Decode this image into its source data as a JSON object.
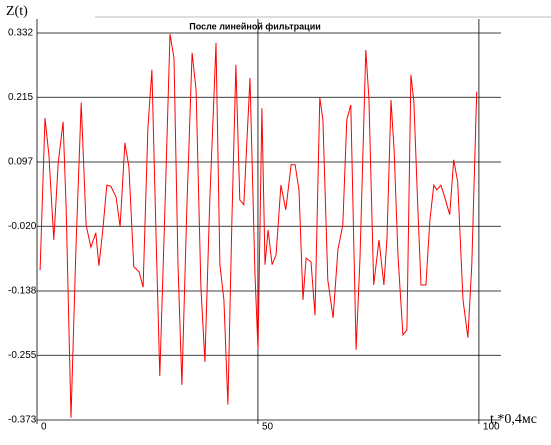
{
  "chart_data": {
    "type": "line",
    "title": "После линейной фильтрации",
    "y_label": "Z(t)",
    "x_label": "t,*0,4мс",
    "x": [
      0.7,
      1.8,
      2.7,
      3.8,
      4.8,
      5.9,
      6.6,
      7.7,
      8.8,
      10.0,
      11.1,
      12.2,
      13.3,
      14.0,
      14.9,
      15.8,
      16.7,
      17.9,
      18.8,
      19.9,
      20.8,
      21.9,
      23.1,
      24.0,
      25.1,
      26.0,
      26.9,
      27.8,
      29.0,
      30.1,
      31.0,
      31.9,
      32.8,
      33.9,
      35.1,
      36.0,
      37.1,
      38.0,
      39.1,
      40.0,
      40.5,
      41.4,
      42.3,
      43.2,
      44.1,
      45.0,
      45.9,
      46.8,
      48.2,
      49.3,
      50.0,
      50.9,
      51.6,
      52.3,
      53.2,
      54.1,
      55.2,
      56.3,
      57.5,
      58.4,
      59.3,
      60.2,
      60.9,
      62.0,
      62.9,
      64.0,
      64.7,
      65.8,
      67.0,
      68.1,
      69.2,
      70.1,
      71.0,
      72.2,
      73.1,
      74.4,
      75.1,
      76.2,
      77.4,
      78.5,
      79.2,
      80.1,
      80.8,
      81.7,
      82.8,
      83.7,
      84.6,
      85.3,
      86.2,
      86.9,
      88.0,
      88.9,
      89.8,
      90.5,
      91.4,
      92.3,
      93.4,
      94.3,
      95.2,
      96.4,
      97.5,
      98.4,
      99.5
    ],
    "series": [
      {
        "color": "#ff0000",
        "values": [
          -0.1,
          0.177,
          0.11,
          -0.045,
          0.095,
          0.17,
          0.01,
          -0.369,
          -0.063,
          0.205,
          -0.018,
          -0.058,
          -0.032,
          -0.092,
          -0.027,
          0.055,
          0.053,
          0.033,
          -0.021,
          0.132,
          0.088,
          -0.094,
          -0.103,
          -0.131,
          0.159,
          0.265,
          -0.027,
          -0.293,
          0.028,
          0.33,
          0.286,
          -0.09,
          -0.309,
          0.01,
          0.296,
          0.228,
          -0.131,
          -0.267,
          0.028,
          0.21,
          0.314,
          -0.09,
          -0.154,
          -0.345,
          -0.009,
          0.274,
          0.028,
          0.019,
          0.25,
          -0.103,
          -0.245,
          0.195,
          -0.09,
          -0.027,
          -0.09,
          -0.072,
          0.055,
          0.01,
          0.092,
          0.092,
          0.046,
          -0.154,
          -0.078,
          -0.085,
          -0.182,
          0.214,
          0.174,
          -0.118,
          -0.187,
          -0.063,
          -0.018,
          0.174,
          0.201,
          -0.245,
          -0.078,
          0.301,
          0.214,
          -0.127,
          -0.045,
          -0.127,
          -0.041,
          0.21,
          0.119,
          -0.074,
          -0.218,
          -0.209,
          0.256,
          0.206,
          0.01,
          -0.127,
          -0.127,
          -0.009,
          0.055,
          0.046,
          0.055,
          0.032,
          0.001,
          0.101,
          0.061,
          -0.154,
          -0.223,
          -0.09,
          0.225
        ]
      }
    ],
    "xlim": [
      0,
      105
    ],
    "xticks": [
      0,
      50,
      100
    ],
    "ylim": [
      -0.373,
      0.332
    ],
    "yticks": [
      -0.373,
      -0.255,
      -0.138,
      {
        "value": -0.02,
        "label": "-0.020"
      },
      0.097,
      0.215,
      0.332
    ],
    "grid": true
  }
}
